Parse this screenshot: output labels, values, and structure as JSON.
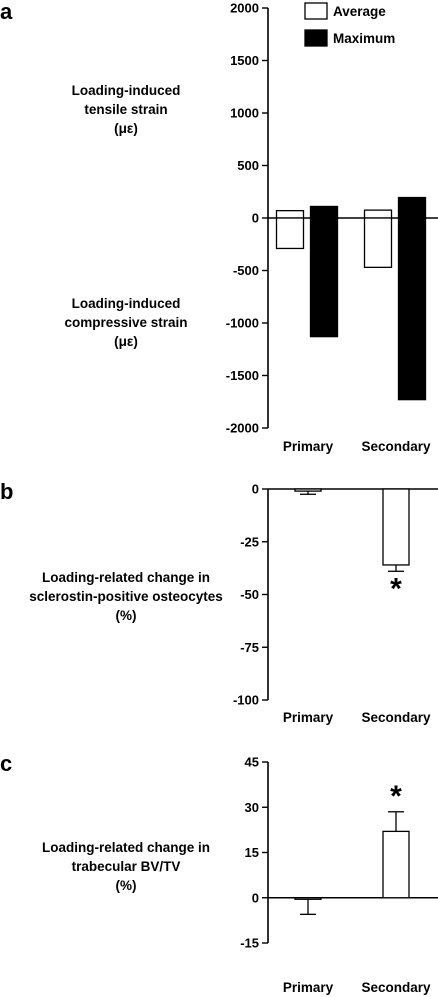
{
  "chart_data": [
    {
      "panel": "a",
      "type": "bar",
      "ylabel_top": [
        "Loading-induced",
        "tensile strain",
        "(με)"
      ],
      "ylabel_bottom": [
        "Loading-induced",
        "compressive strain",
        "(με)"
      ],
      "categories": [
        "Primary",
        "Secondary"
      ],
      "ylim": [
        -2000,
        2000
      ],
      "yticks": [
        2000,
        1500,
        1000,
        500,
        0,
        -500,
        -1000,
        -1500,
        -2000
      ],
      "legend_placement": "top-right",
      "colors": {
        "Average": "#ffffff",
        "Maximum": "#000000"
      },
      "series": [
        {
          "name": "Average",
          "tensile": [
            70,
            75
          ],
          "compressive": [
            -290,
            -470
          ]
        },
        {
          "name": "Maximum",
          "tensile": [
            110,
            195
          ],
          "compressive": [
            -1130,
            -1730
          ]
        }
      ]
    },
    {
      "panel": "b",
      "type": "bar",
      "ylabel": [
        "Loading-related change in",
        "sclerostin-positive osteocytes",
        "(%)"
      ],
      "categories": [
        "Primary",
        "Secondary"
      ],
      "ylim": [
        -100,
        0
      ],
      "yticks": [
        0,
        -25,
        -50,
        -75,
        -100
      ],
      "values": [
        -1,
        -36
      ],
      "errors": [
        1.5,
        3
      ],
      "significance": [
        "",
        "*"
      ]
    },
    {
      "panel": "c",
      "type": "bar",
      "ylabel": [
        "Loading-related change in",
        "trabecular BV/TV",
        "(%)"
      ],
      "categories": [
        "Primary",
        "Secondary"
      ],
      "ylim": [
        -15,
        45
      ],
      "yticks": [
        45,
        30,
        15,
        0,
        -15
      ],
      "values": [
        -0.5,
        22
      ],
      "errors": [
        5,
        6.5
      ],
      "significance": [
        "",
        "*"
      ]
    }
  ]
}
